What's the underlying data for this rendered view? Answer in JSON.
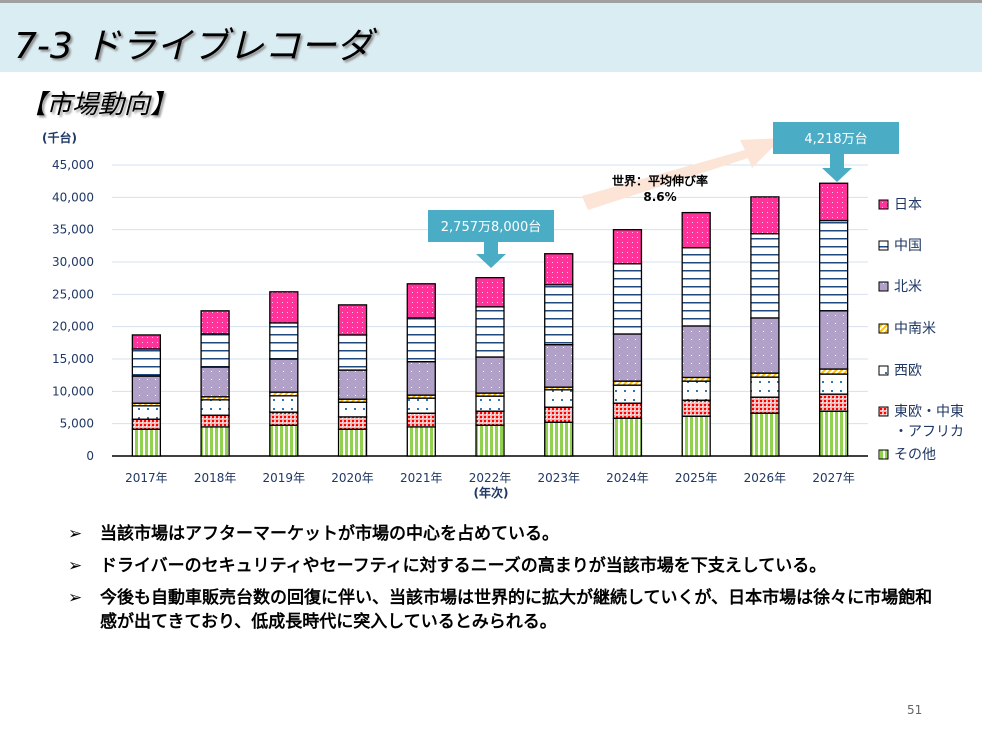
{
  "header": {
    "title": "7-3 ドライブレコーダ",
    "section": "【市場動向】"
  },
  "chart_data": {
    "type": "bar",
    "stacked": true,
    "ylabel": "(千台)",
    "xlabel": "(年次)",
    "ylim": [
      0,
      45000
    ],
    "yticks": [
      "0",
      "5,000",
      "10,000",
      "15,000",
      "20,000",
      "25,000",
      "30,000",
      "35,000",
      "40,000",
      "45,000"
    ],
    "grid": true,
    "legend_position": "right",
    "categories": [
      "2017年",
      "2018年",
      "2019年",
      "2020年",
      "2021年",
      "2022年",
      "2023年",
      "2024年",
      "2025年",
      "2026年",
      "2027年"
    ],
    "series": [
      {
        "name": "その他",
        "color": "#92d050",
        "pattern": "vstripes",
        "values": [
          4140,
          4500,
          4760,
          4140,
          4500,
          4760,
          5220,
          5840,
          6150,
          6620,
          6930
        ]
      },
      {
        "name": "東欧・中東・アフリカ",
        "color": "#ff0000",
        "pattern": "check",
        "values": [
          1550,
          1810,
          2020,
          1910,
          2120,
          2170,
          2330,
          2330,
          2480,
          2480,
          2640
        ]
      },
      {
        "name": "西欧",
        "color": "#0070c0",
        "pattern": "dots",
        "values": [
          2070,
          2380,
          2530,
          2270,
          2330,
          2330,
          2690,
          2790,
          2950,
          3100,
          3100
        ]
      },
      {
        "name": "中南米",
        "color": "#ffc000",
        "pattern": "diag",
        "values": [
          410,
          470,
          570,
          470,
          470,
          470,
          410,
          620,
          570,
          620,
          780
        ]
      },
      {
        "name": "北米",
        "color": "#b1a0c7",
        "pattern": "lightdots",
        "values": [
          4190,
          4600,
          5120,
          4500,
          5170,
          5580,
          6570,
          7290,
          7960,
          8530,
          9000
        ]
      },
      {
        "name": "中国",
        "color": "#1f497d",
        "pattern": "hlines",
        "values": [
          4190,
          5120,
          5580,
          5430,
          6770,
          7760,
          9250,
          10860,
          12100,
          13030,
          13960
        ]
      },
      {
        "name": "日本",
        "color": "#ff3399",
        "pattern": "pinkdots",
        "values": [
          2170,
          3570,
          4810,
          4650,
          5270,
          4510,
          4810,
          5270,
          5430,
          5690,
          5770
        ]
      }
    ],
    "annotations": [
      {
        "text": "2,757万8,000台",
        "category": "2022年"
      },
      {
        "text": "4,218万台",
        "category": "2027年"
      },
      {
        "text": "世界：平均伸び率",
        "sub": "8.6%"
      }
    ]
  },
  "bullets": [
    "当該市場はアフターマーケットが市場の中心を占めている。",
    "ドライバーのセキュリティやセーフティに対するニーズの高まりが当該市場を下支えしている。",
    "今後も自動車販売台数の回復に伴い、当該市場は世界的に拡大が継続していくが、日本市場は徐々に市場飽和感が出てきており、低成長時代に突入しているとみられる。"
  ],
  "bullet_marker": "➢",
  "page_number": "51"
}
